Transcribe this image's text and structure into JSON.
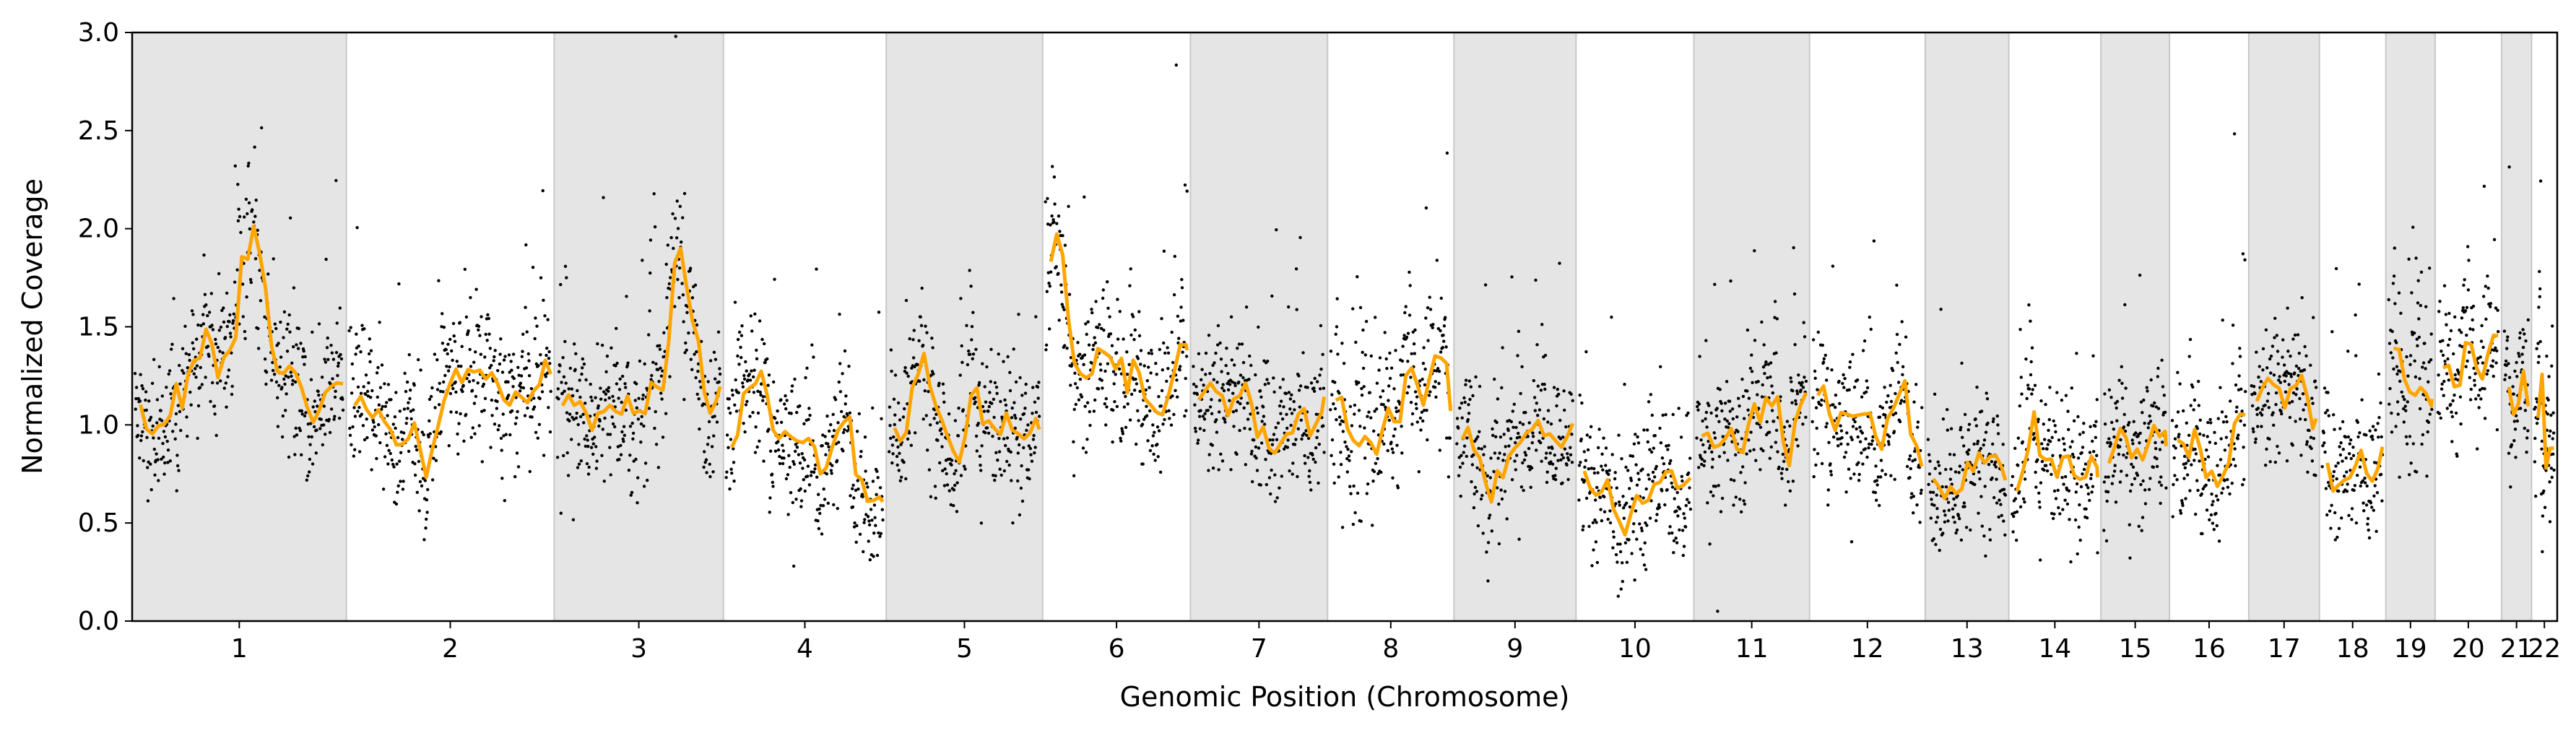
{
  "chart_data": {
    "type": "scatter",
    "xlabel": "Genomic Position (Chromosome)",
    "ylabel": "Normalized Coverage",
    "ylim": [
      0.0,
      3.0
    ],
    "yticks": [
      "0.0",
      "0.5",
      "1.0",
      "1.5",
      "2.0",
      "2.5",
      "3.0"
    ],
    "grid": false,
    "legend": "none",
    "shading": "alternating gray bands on odd chromosomes",
    "colors": {
      "points": "#000000",
      "trend": "#FFA500",
      "band": "#e5e5e5",
      "band_edge": "#c8c8c8"
    },
    "chromosomes": [
      {
        "label": "1",
        "length": 1.0,
        "mean": 1.1,
        "peak": [
          0.55,
          0.7
        ]
      },
      {
        "label": "2",
        "length": 0.97,
        "mean": 1.05,
        "peak": [
          0.95,
          0.35
        ]
      },
      {
        "label": "3",
        "length": 0.79,
        "mean": 1.1,
        "peak": [
          0.75,
          0.8
        ]
      },
      {
        "label": "4",
        "length": 0.76,
        "mean": 0.9,
        "peak": null
      },
      {
        "label": "5",
        "length": 0.73,
        "mean": 0.95,
        "peak": [
          0.2,
          0.35
        ]
      },
      {
        "label": "6",
        "length": 0.69,
        "mean": 1.25,
        "peak": [
          0.05,
          0.75
        ]
      },
      {
        "label": "7",
        "length": 0.64,
        "mean": 1.15,
        "peak": null
      },
      {
        "label": "8",
        "length": 0.59,
        "mean": 1.1,
        "peak": null
      },
      {
        "label": "9",
        "length": 0.57,
        "mean": 0.9,
        "peak": null
      },
      {
        "label": "10",
        "length": 0.55,
        "mean": 0.75,
        "peak": null
      },
      {
        "label": "11",
        "length": 0.54,
        "mean": 0.95,
        "peak": null
      },
      {
        "label": "12",
        "length": 0.54,
        "mean": 1.05,
        "peak": null
      },
      {
        "label": "13",
        "length": 0.39,
        "mean": 0.8,
        "peak": null
      },
      {
        "label": "14",
        "length": 0.43,
        "mean": 0.75,
        "peak": null
      },
      {
        "label": "15",
        "length": 0.32,
        "mean": 0.85,
        "peak": null
      },
      {
        "label": "16",
        "length": 0.37,
        "mean": 0.9,
        "peak": null
      },
      {
        "label": "17",
        "length": 0.33,
        "mean": 1.2,
        "peak": null
      },
      {
        "label": "18",
        "length": 0.31,
        "mean": 0.9,
        "peak": null
      },
      {
        "label": "19",
        "length": 0.23,
        "mean": 1.35,
        "peak": null
      },
      {
        "label": "20",
        "length": 0.31,
        "mean": 1.2,
        "peak": null
      },
      {
        "label": "21",
        "length": 0.14,
        "mean": 1.25,
        "peak": null
      },
      {
        "label": "22",
        "length": 0.12,
        "mean": 1.0,
        "peak": [
          0.25,
          0.8
        ]
      }
    ]
  }
}
